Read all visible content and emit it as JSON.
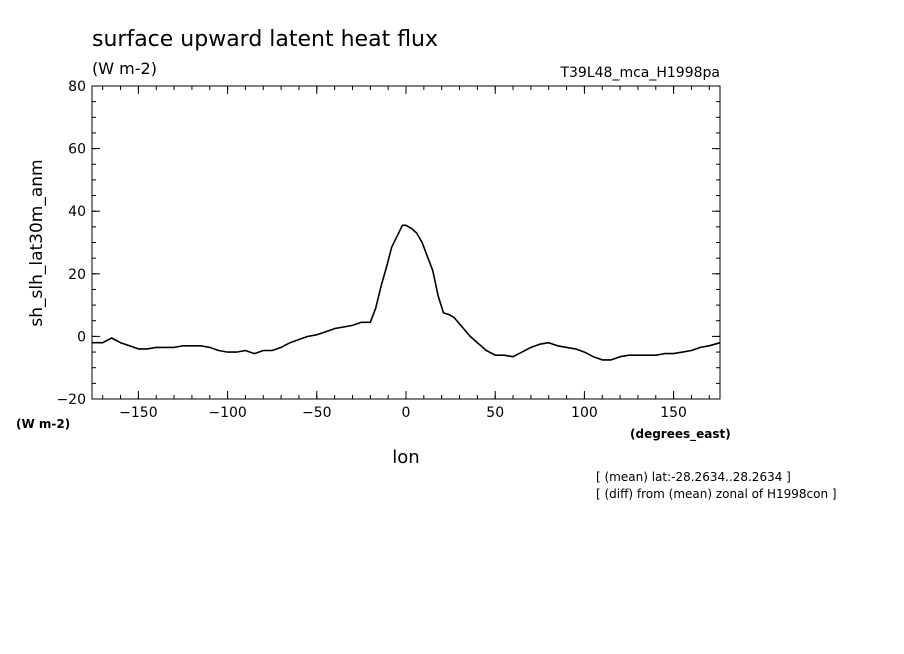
{
  "chart_data": {
    "type": "line",
    "title": "surface upward latent heat flux",
    "units": "(W m-2)",
    "run_label": "T39L48_mca_H1998pa",
    "xlabel": "lon",
    "xunits": "(degrees_east)",
    "ylabel": "sh_slh_lat30m_anm",
    "yunits": "(W m-2)",
    "xlim": [
      -176,
      176
    ],
    "ylim": [
      -20,
      80
    ],
    "xticks": [
      -150,
      -100,
      -50,
      0,
      50,
      100,
      150
    ],
    "yticks": [
      -20,
      0,
      20,
      40,
      60,
      80
    ],
    "grid": false,
    "notes": [
      "[ (mean) lat:-28.2634..28.2634 ]",
      "[ (diff) from (mean) zonal of H1998con ]"
    ],
    "color": "#000000",
    "series": [
      {
        "x": [
          -176,
          -170,
          -165,
          -160,
          -155,
          -150,
          -145,
          -140,
          -135,
          -130,
          -125,
          -120,
          -115,
          -110,
          -105,
          -100,
          -95,
          -90,
          -85,
          -80,
          -75,
          -70,
          -65,
          -60,
          -55,
          -50,
          -45,
          -40,
          -35,
          -30,
          -25,
          -20,
          -17,
          -14,
          -11,
          -8,
          -5,
          -2,
          0,
          3,
          6,
          9,
          12,
          15,
          18,
          21,
          24,
          27,
          30,
          33,
          36,
          39,
          42,
          45,
          50,
          55,
          60,
          65,
          70,
          75,
          80,
          85,
          90,
          95,
          100,
          105,
          110,
          115,
          120,
          125,
          130,
          135,
          140,
          145,
          150,
          155,
          160,
          165,
          170,
          176
        ],
        "y": [
          -2,
          -2,
          -0.5,
          -2,
          -3,
          -4,
          -4,
          -3.5,
          -3.5,
          -3.5,
          -3,
          -3,
          -3,
          -3.5,
          -4.5,
          -5,
          -5,
          -4.5,
          -5.5,
          -4.5,
          -4.5,
          -3.5,
          -2,
          -1,
          0,
          0.5,
          1.5,
          2.5,
          3,
          3.5,
          4.5,
          4.5,
          9,
          16,
          22,
          28.5,
          32,
          35.5,
          35.5,
          34.5,
          33,
          30,
          25.5,
          21,
          13,
          7.5,
          7,
          6,
          4,
          2,
          0,
          -1.5,
          -3,
          -4.5,
          -6,
          -6,
          -6.5,
          -5,
          -3.5,
          -2.5,
          -2,
          -3,
          -3.5,
          -4,
          -5,
          -6.5,
          -7.5,
          -7.5,
          -6.5,
          -6,
          -6,
          -6,
          -6,
          -5.5,
          -5.5,
          -5,
          -4.5,
          -3.5,
          -3,
          -2
        ]
      }
    ]
  }
}
